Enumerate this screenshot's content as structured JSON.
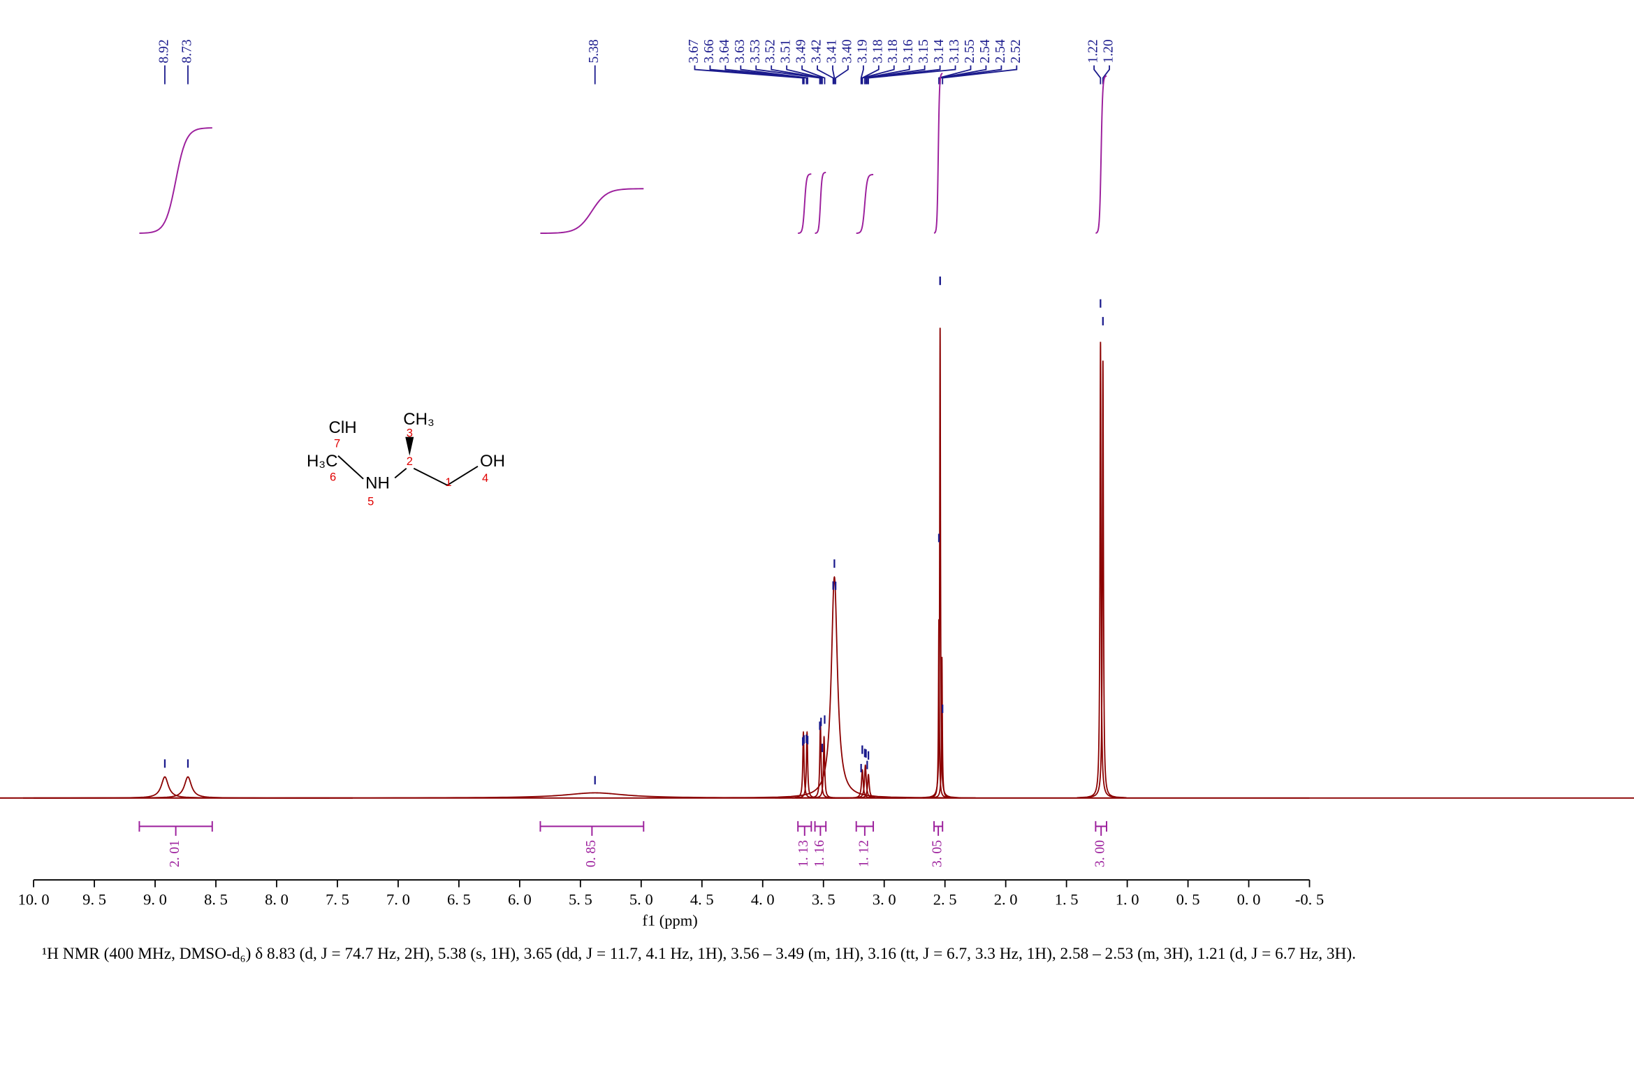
{
  "chart_data": {
    "type": "nmr",
    "x_label": "f1 (ppm)",
    "xlim": [
      10.0,
      -0.5
    ],
    "xticks": [
      {
        "value": 10.0,
        "label": "10. 0"
      },
      {
        "value": 9.5,
        "label": "9. 5"
      },
      {
        "value": 9.0,
        "label": "9. 0"
      },
      {
        "value": 8.5,
        "label": "8. 5"
      },
      {
        "value": 8.0,
        "label": "8. 0"
      },
      {
        "value": 7.5,
        "label": "7. 5"
      },
      {
        "value": 7.0,
        "label": "7. 0"
      },
      {
        "value": 6.5,
        "label": "6. 5"
      },
      {
        "value": 6.0,
        "label": "6. 0"
      },
      {
        "value": 5.5,
        "label": "5. 5"
      },
      {
        "value": 5.0,
        "label": "5. 0"
      },
      {
        "value": 4.5,
        "label": "4. 5"
      },
      {
        "value": 4.0,
        "label": "4. 0"
      },
      {
        "value": 3.5,
        "label": "3. 5"
      },
      {
        "value": 3.0,
        "label": "3. 0"
      },
      {
        "value": 2.5,
        "label": "2. 5"
      },
      {
        "value": 2.0,
        "label": "2. 0"
      },
      {
        "value": 1.5,
        "label": "1. 5"
      },
      {
        "value": 1.0,
        "label": "1. 0"
      },
      {
        "value": 0.5,
        "label": "0. 5"
      },
      {
        "value": 0.0,
        "label": "0. 0"
      },
      {
        "value": -0.5,
        "label": "-0. 5"
      }
    ],
    "ylim": [
      0,
      100
    ],
    "color": "#8b0000",
    "peaks": [
      {
        "x": 8.92,
        "height": 4.5,
        "width": 0.035
      },
      {
        "x": 8.73,
        "height": 4.5,
        "width": 0.035
      },
      {
        "x": 5.38,
        "height": 1.1,
        "width": 0.3
      },
      {
        "x": 3.665,
        "height": 14,
        "width": 0.006
      },
      {
        "x": 3.635,
        "height": 14,
        "width": 0.006
      },
      {
        "x": 3.525,
        "height": 16,
        "width": 0.006
      },
      {
        "x": 3.495,
        "height": 13,
        "width": 0.006
      },
      {
        "x": 3.41,
        "height": 47,
        "width": 0.03
      },
      {
        "x": 3.18,
        "height": 6,
        "width": 0.008
      },
      {
        "x": 3.155,
        "height": 7,
        "width": 0.008
      },
      {
        "x": 3.13,
        "height": 5,
        "width": 0.008
      },
      {
        "x": 2.55,
        "height": 38,
        "width": 0.004
      },
      {
        "x": 2.54,
        "height": 100,
        "width": 0.004
      },
      {
        "x": 2.525,
        "height": 30,
        "width": 0.004
      },
      {
        "x": 1.22,
        "height": 97,
        "width": 0.005
      },
      {
        "x": 1.2,
        "height": 93,
        "width": 0.005
      }
    ],
    "peak_labels": [
      {
        "value": 8.92,
        "label": "8.92"
      },
      {
        "value": 8.73,
        "label": "8.73"
      },
      {
        "value": 5.38,
        "label": "5.38"
      },
      {
        "value": 3.67,
        "label": "3.67"
      },
      {
        "value": 3.66,
        "label": "3.66"
      },
      {
        "value": 3.64,
        "label": "3.64"
      },
      {
        "value": 3.63,
        "label": "3.63"
      },
      {
        "value": 3.53,
        "label": "3.53"
      },
      {
        "value": 3.52,
        "label": "3.52"
      },
      {
        "value": 3.51,
        "label": "3.51"
      },
      {
        "value": 3.49,
        "label": "3.49"
      },
      {
        "value": 3.42,
        "label": "3.42"
      },
      {
        "value": 3.41,
        "label": "3.41"
      },
      {
        "value": 3.4,
        "label": "3.40"
      },
      {
        "value": 3.19,
        "label": "3.19"
      },
      {
        "value": 3.18,
        "label": "3.18"
      },
      {
        "value": 3.18,
        "label": "3.18"
      },
      {
        "value": 3.16,
        "label": "3.16"
      },
      {
        "value": 3.15,
        "label": "3.15"
      },
      {
        "value": 3.14,
        "label": "3.14"
      },
      {
        "value": 3.13,
        "label": "3.13"
      },
      {
        "value": 2.55,
        "label": "2.55"
      },
      {
        "value": 2.54,
        "label": "2.54"
      },
      {
        "value": 2.54,
        "label": "2.54"
      },
      {
        "value": 2.52,
        "label": "2.52"
      },
      {
        "value": 1.22,
        "label": "1.22"
      },
      {
        "value": 1.2,
        "label": "1.20"
      }
    ],
    "integrals": [
      {
        "from": 9.13,
        "to": 8.53,
        "value": 2.01,
        "label": "2. 01"
      },
      {
        "from": 5.83,
        "to": 4.98,
        "value": 0.85,
        "label": "0. 85"
      },
      {
        "from": 3.71,
        "to": 3.6,
        "value": 1.13,
        "label": "1. 13"
      },
      {
        "from": 3.57,
        "to": 3.48,
        "value": 1.16,
        "label": "1. 16"
      },
      {
        "from": 3.23,
        "to": 3.09,
        "value": 1.12,
        "label": "1. 12"
      },
      {
        "from": 2.59,
        "to": 2.52,
        "value": 3.05,
        "label": "3. 05"
      },
      {
        "from": 1.26,
        "to": 1.17,
        "value": 3.0,
        "label": "3. 00"
      }
    ],
    "structure": {
      "atoms": [
        "ClH",
        "CH₃",
        "H₃C",
        "NH",
        "OH"
      ],
      "numbers": [
        "7",
        "3",
        "2",
        "6",
        "5",
        "1",
        "4"
      ]
    },
    "caption": "¹H NMR (400 MHz, DMSO-d₆) δ 8.83 (d, J = 74.7 Hz, 2H), 5.38 (s, 1H), 3.65 (dd, J = 11.7, 4.1 Hz, 1H), 3.56 – 3.49 (m, 1H), 3.16 (tt, J = 6.7, 3.3 Hz, 1H), 2.58 – 2.53 (m, 3H), 1.21 (d, J = 6.7 Hz, 3H)."
  }
}
